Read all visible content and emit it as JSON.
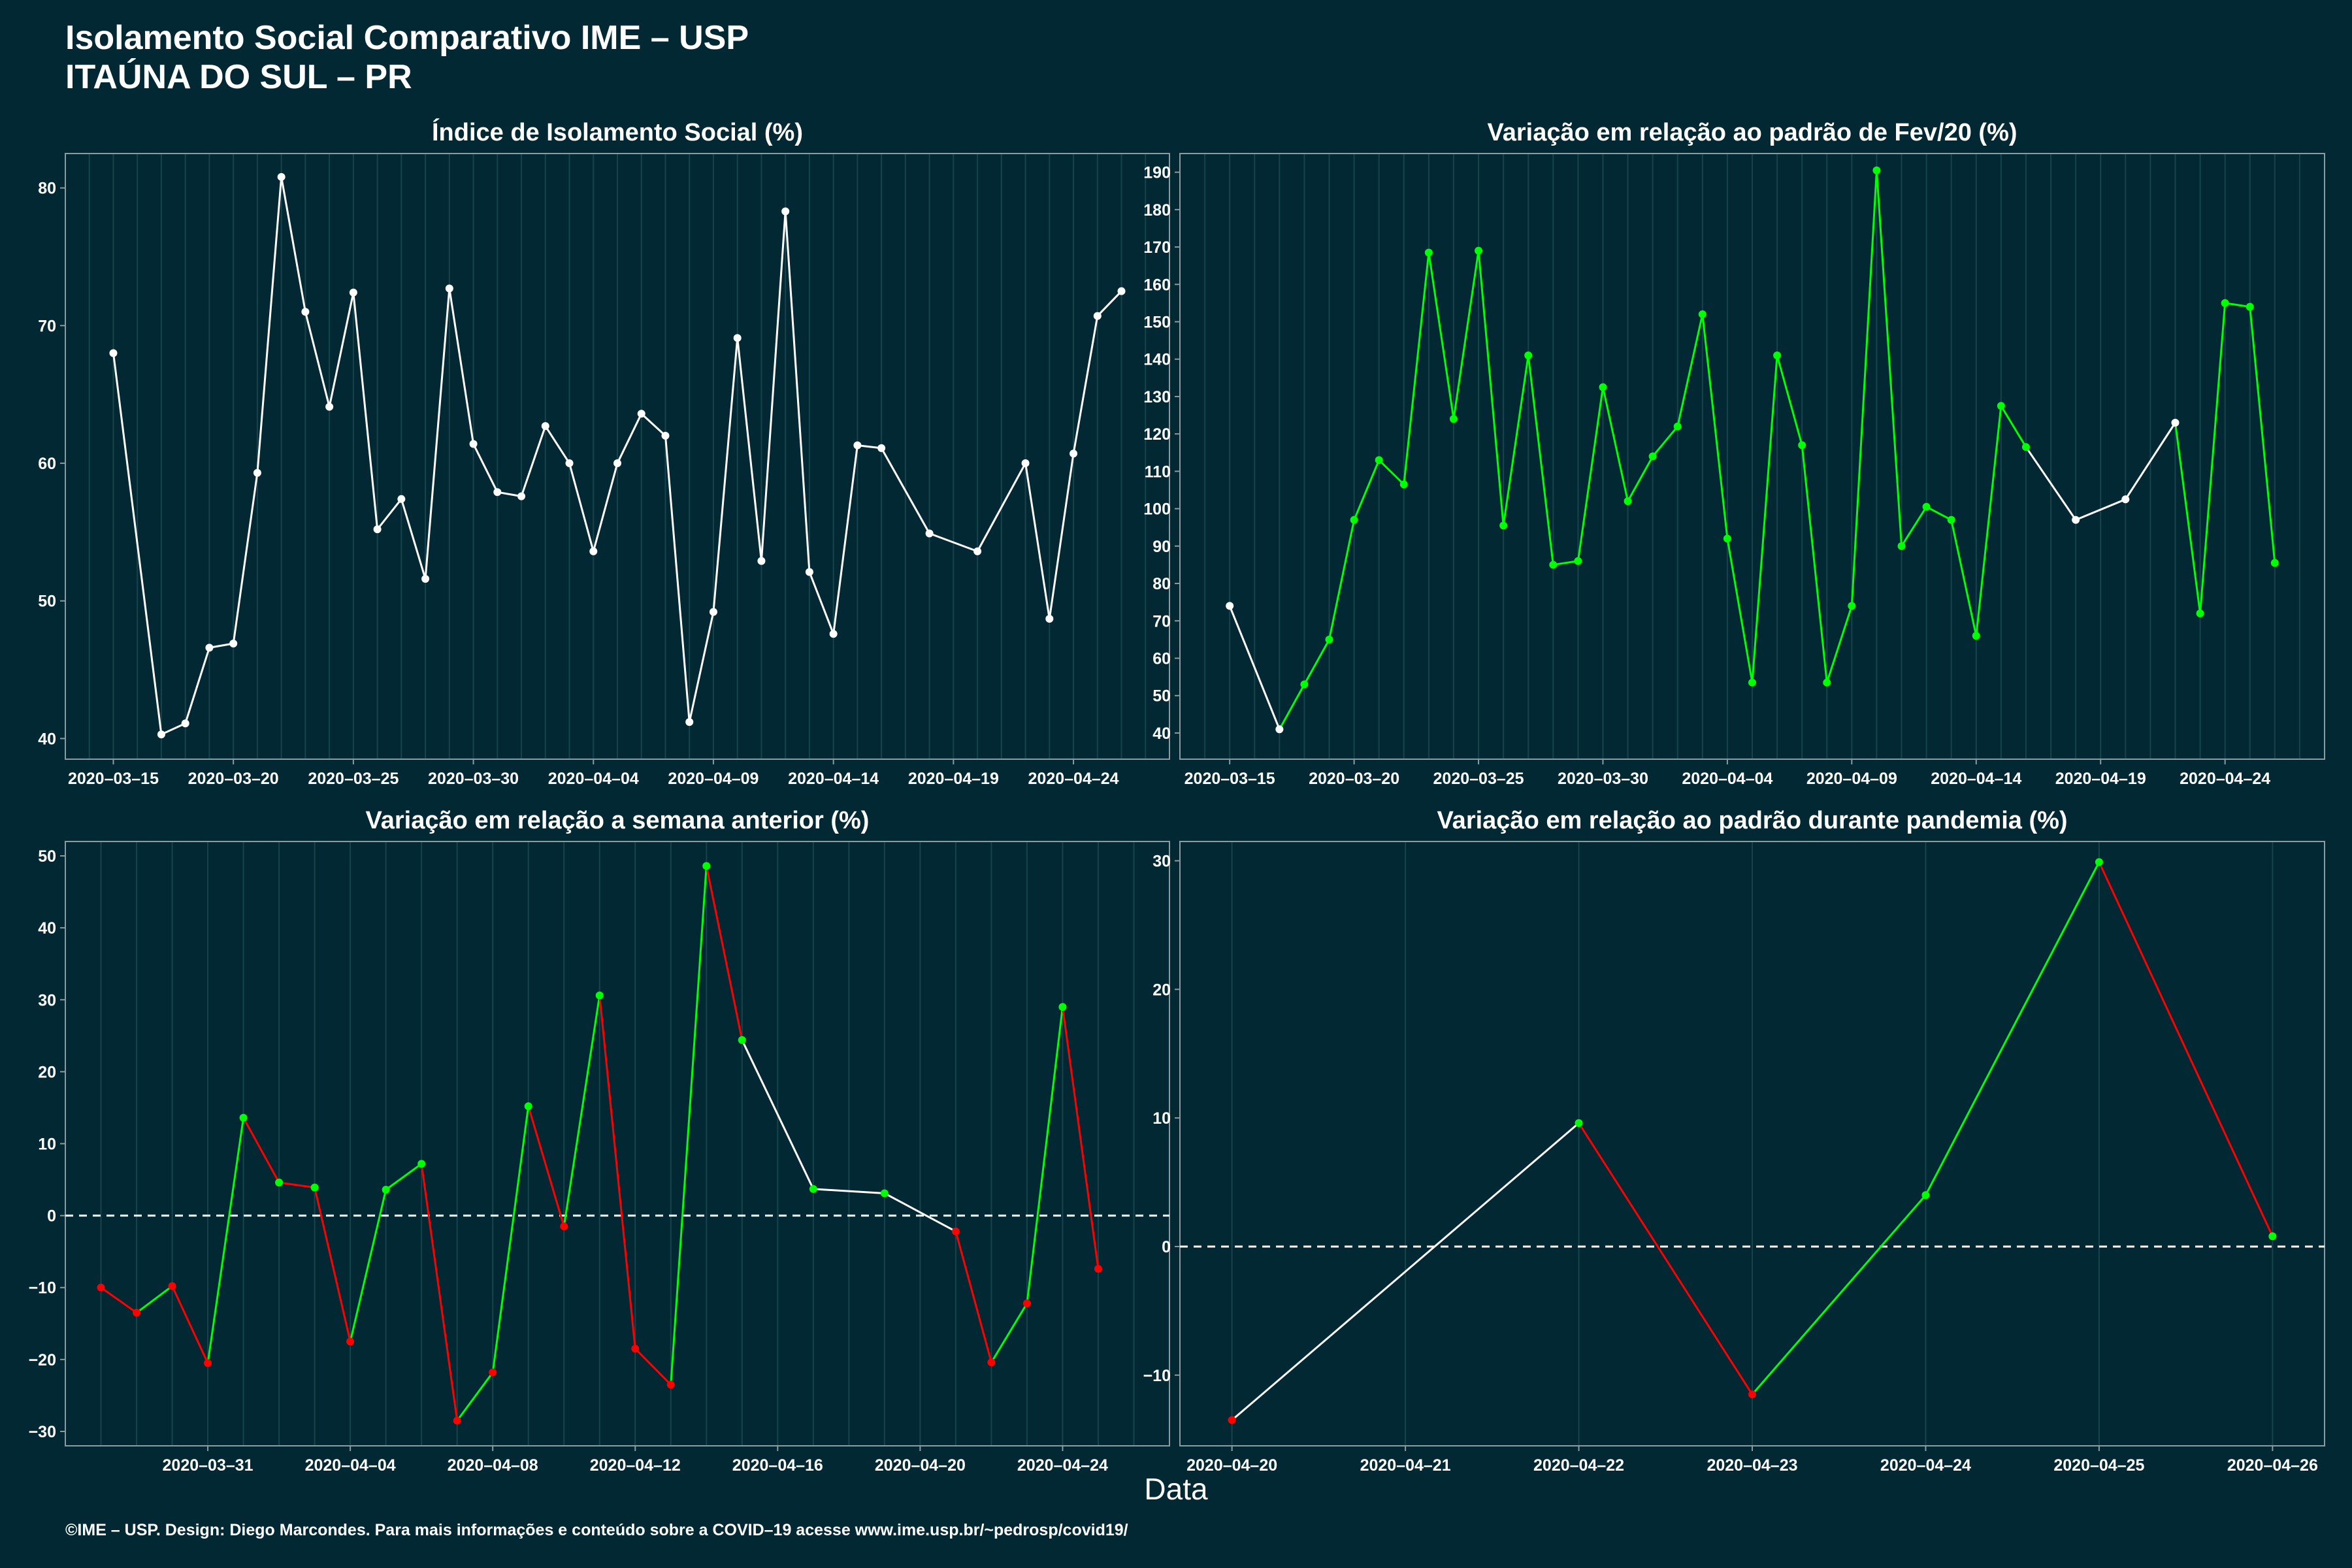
{
  "header": {
    "title_line1": "Isolamento Social Comparativo IME – USP",
    "title_line2": "ITAÚNA DO SUL – PR"
  },
  "footer": "©IME – USP. Design: Diego Marcondes. Para mais informações e conteúdo sobre a COVID–19 acesse www.ime.usp.br/~pedrosp/covid19/",
  "shared_xlabel": "Data",
  "colors": {
    "background": "#022933",
    "neutral": "#ffffff",
    "up": "#00ff00",
    "down": "#ff0000",
    "grid": "#17434c"
  },
  "chart_data": [
    {
      "id": "isolamento",
      "type": "line",
      "title": "Índice de Isolamento Social (%)",
      "x_type": "date",
      "xlim": [
        "2020-03-13",
        "2020-04-28"
      ],
      "ylim": [
        38.5,
        82.5
      ],
      "yticks": [
        40,
        50,
        60,
        70,
        80
      ],
      "xticks": [
        "2020-03-15",
        "2020-03-20",
        "2020-03-25",
        "2020-03-30",
        "2020-04-04",
        "2020-04-09",
        "2020-04-14",
        "2020-04-19",
        "2020-04-24"
      ],
      "color_mode": "neutral",
      "points": [
        [
          "2020-03-15",
          68.0
        ],
        [
          "2020-03-17",
          40.3
        ],
        [
          "2020-03-18",
          41.1
        ],
        [
          "2020-03-19",
          46.6
        ],
        [
          "2020-03-20",
          46.9
        ],
        [
          "2020-03-21",
          59.3
        ],
        [
          "2020-03-22",
          80.8
        ],
        [
          "2020-03-23",
          71.0
        ],
        [
          "2020-03-24",
          64.1
        ],
        [
          "2020-03-25",
          72.4
        ],
        [
          "2020-03-26",
          55.2
        ],
        [
          "2020-03-27",
          57.4
        ],
        [
          "2020-03-28",
          51.6
        ],
        [
          "2020-03-29",
          72.7
        ],
        [
          "2020-03-30",
          61.4
        ],
        [
          "2020-03-31",
          57.9
        ],
        [
          "2020-04-01",
          57.6
        ],
        [
          "2020-04-02",
          62.7
        ],
        [
          "2020-04-03",
          60.0
        ],
        [
          "2020-04-04",
          53.6
        ],
        [
          "2020-04-05",
          60.0
        ],
        [
          "2020-04-06",
          63.6
        ],
        [
          "2020-04-07",
          62.0
        ],
        [
          "2020-04-08",
          41.2
        ],
        [
          "2020-04-09",
          49.2
        ],
        [
          "2020-04-10",
          69.1
        ],
        [
          "2020-04-11",
          52.9
        ],
        [
          "2020-04-12",
          78.3
        ],
        [
          "2020-04-13",
          52.1
        ],
        [
          "2020-04-14",
          47.6
        ],
        [
          "2020-04-15",
          61.3
        ],
        [
          "2020-04-16",
          61.1
        ],
        [
          "2020-04-18",
          54.9
        ],
        [
          "2020-04-20",
          53.6
        ],
        [
          "2020-04-22",
          60.0
        ],
        [
          "2020-04-23",
          48.7
        ],
        [
          "2020-04-24",
          60.7
        ],
        [
          "2020-04-25",
          70.7
        ],
        [
          "2020-04-26",
          72.5
        ]
      ]
    },
    {
      "id": "fev20",
      "type": "line",
      "title": "Variação em relação ao padrão de Fev/20 (%)",
      "x_type": "date",
      "xlim": [
        "2020-03-13",
        "2020-04-28"
      ],
      "ylim": [
        33,
        195
      ],
      "yticks": [
        40,
        50,
        60,
        70,
        80,
        90,
        100,
        110,
        120,
        130,
        140,
        150,
        160,
        170,
        180,
        190
      ],
      "xticks": [
        "2020-03-15",
        "2020-03-20",
        "2020-03-25",
        "2020-03-30",
        "2020-04-04",
        "2020-04-09",
        "2020-04-14",
        "2020-04-19",
        "2020-04-24"
      ],
      "color_mode": "consecutive",
      "points": [
        [
          "2020-03-15",
          74
        ],
        [
          "2020-03-17",
          41
        ],
        [
          "2020-03-18",
          53
        ],
        [
          "2020-03-19",
          65
        ],
        [
          "2020-03-20",
          97
        ],
        [
          "2020-03-21",
          113
        ],
        [
          "2020-03-22",
          106.5
        ],
        [
          "2020-03-23",
          168.5
        ],
        [
          "2020-03-24",
          124
        ],
        [
          "2020-03-25",
          169
        ],
        [
          "2020-03-26",
          95.5
        ],
        [
          "2020-03-27",
          141
        ],
        [
          "2020-03-28",
          85
        ],
        [
          "2020-03-29",
          86
        ],
        [
          "2020-03-30",
          132.5
        ],
        [
          "2020-03-31",
          102
        ],
        [
          "2020-04-01",
          114
        ],
        [
          "2020-04-02",
          122
        ],
        [
          "2020-04-03",
          152
        ],
        [
          "2020-04-04",
          92
        ],
        [
          "2020-04-05",
          53.5
        ],
        [
          "2020-04-06",
          141
        ],
        [
          "2020-04-07",
          117
        ],
        [
          "2020-04-08",
          53.5
        ],
        [
          "2020-04-09",
          74
        ],
        [
          "2020-04-10",
          190.5
        ],
        [
          "2020-04-11",
          90
        ],
        [
          "2020-04-12",
          100.5
        ],
        [
          "2020-04-13",
          97
        ],
        [
          "2020-04-14",
          66
        ],
        [
          "2020-04-15",
          127.5
        ],
        [
          "2020-04-16",
          116.5
        ],
        [
          "2020-04-18",
          97
        ],
        [
          "2020-04-20",
          102.5
        ],
        [
          "2020-04-22",
          123
        ],
        [
          "2020-04-23",
          72
        ],
        [
          "2020-04-24",
          155
        ],
        [
          "2020-04-25",
          154
        ],
        [
          "2020-04-26",
          85.5
        ]
      ]
    },
    {
      "id": "semana",
      "type": "line",
      "title": "Variação em relação a semana anterior (%)",
      "x_type": "date",
      "xlim": [
        "2020-03-27",
        "2020-04-27"
      ],
      "ylim": [
        -32,
        52
      ],
      "yticks": [
        -30,
        -20,
        -10,
        0,
        10,
        20,
        30,
        40,
        50
      ],
      "xticks": [
        "2020-03-31",
        "2020-04-04",
        "2020-04-08",
        "2020-04-12",
        "2020-04-16",
        "2020-04-20",
        "2020-04-24"
      ],
      "zero_line": true,
      "color_mode": "sign",
      "points": [
        [
          "2020-03-28",
          -10
        ],
        [
          "2020-03-29",
          -13.5
        ],
        [
          "2020-03-30",
          -9.8
        ],
        [
          "2020-03-31",
          -20.5
        ],
        [
          "2020-04-01",
          13.6
        ],
        [
          "2020-04-02",
          4.6
        ],
        [
          "2020-04-03",
          3.9
        ],
        [
          "2020-04-04",
          -17.5
        ],
        [
          "2020-04-05",
          3.6
        ],
        [
          "2020-04-06",
          7.2
        ],
        [
          "2020-04-07",
          -28.5
        ],
        [
          "2020-04-08",
          -21.8
        ],
        [
          "2020-04-09",
          15.2
        ],
        [
          "2020-04-10",
          -1.5
        ],
        [
          "2020-04-11",
          30.6
        ],
        [
          "2020-04-12",
          -18.5
        ],
        [
          "2020-04-13",
          -23.5
        ],
        [
          "2020-04-14",
          48.6
        ],
        [
          "2020-04-15",
          24.4
        ],
        [
          "2020-04-17",
          3.7
        ],
        [
          "2020-04-19",
          3.1
        ],
        [
          "2020-04-21",
          -2.2
        ],
        [
          "2020-04-22",
          -20.4
        ],
        [
          "2020-04-23",
          -12.2
        ],
        [
          "2020-04-24",
          29
        ],
        [
          "2020-04-25",
          -7.4
        ]
      ]
    },
    {
      "id": "pandemia",
      "type": "line",
      "title": "Variação em relação ao padrão durante pandemia (%)",
      "x_type": "date",
      "xlim": [
        "2020-04-19.7",
        "2020-04-26.3"
      ],
      "ylim": [
        -15.5,
        31.5
      ],
      "yticks": [
        -10,
        0,
        10,
        20,
        30
      ],
      "xticks": [
        "2020-04-20",
        "2020-04-21",
        "2020-04-22",
        "2020-04-23",
        "2020-04-24",
        "2020-04-25",
        "2020-04-26"
      ],
      "zero_line": true,
      "color_mode": "sign",
      "points": [
        [
          "2020-04-20",
          -13.5
        ],
        [
          "2020-04-22",
          9.6
        ],
        [
          "2020-04-23",
          -11.5
        ],
        [
          "2020-04-24",
          4.0
        ],
        [
          "2020-04-25",
          29.9
        ],
        [
          "2020-04-26",
          0.8
        ]
      ]
    }
  ]
}
